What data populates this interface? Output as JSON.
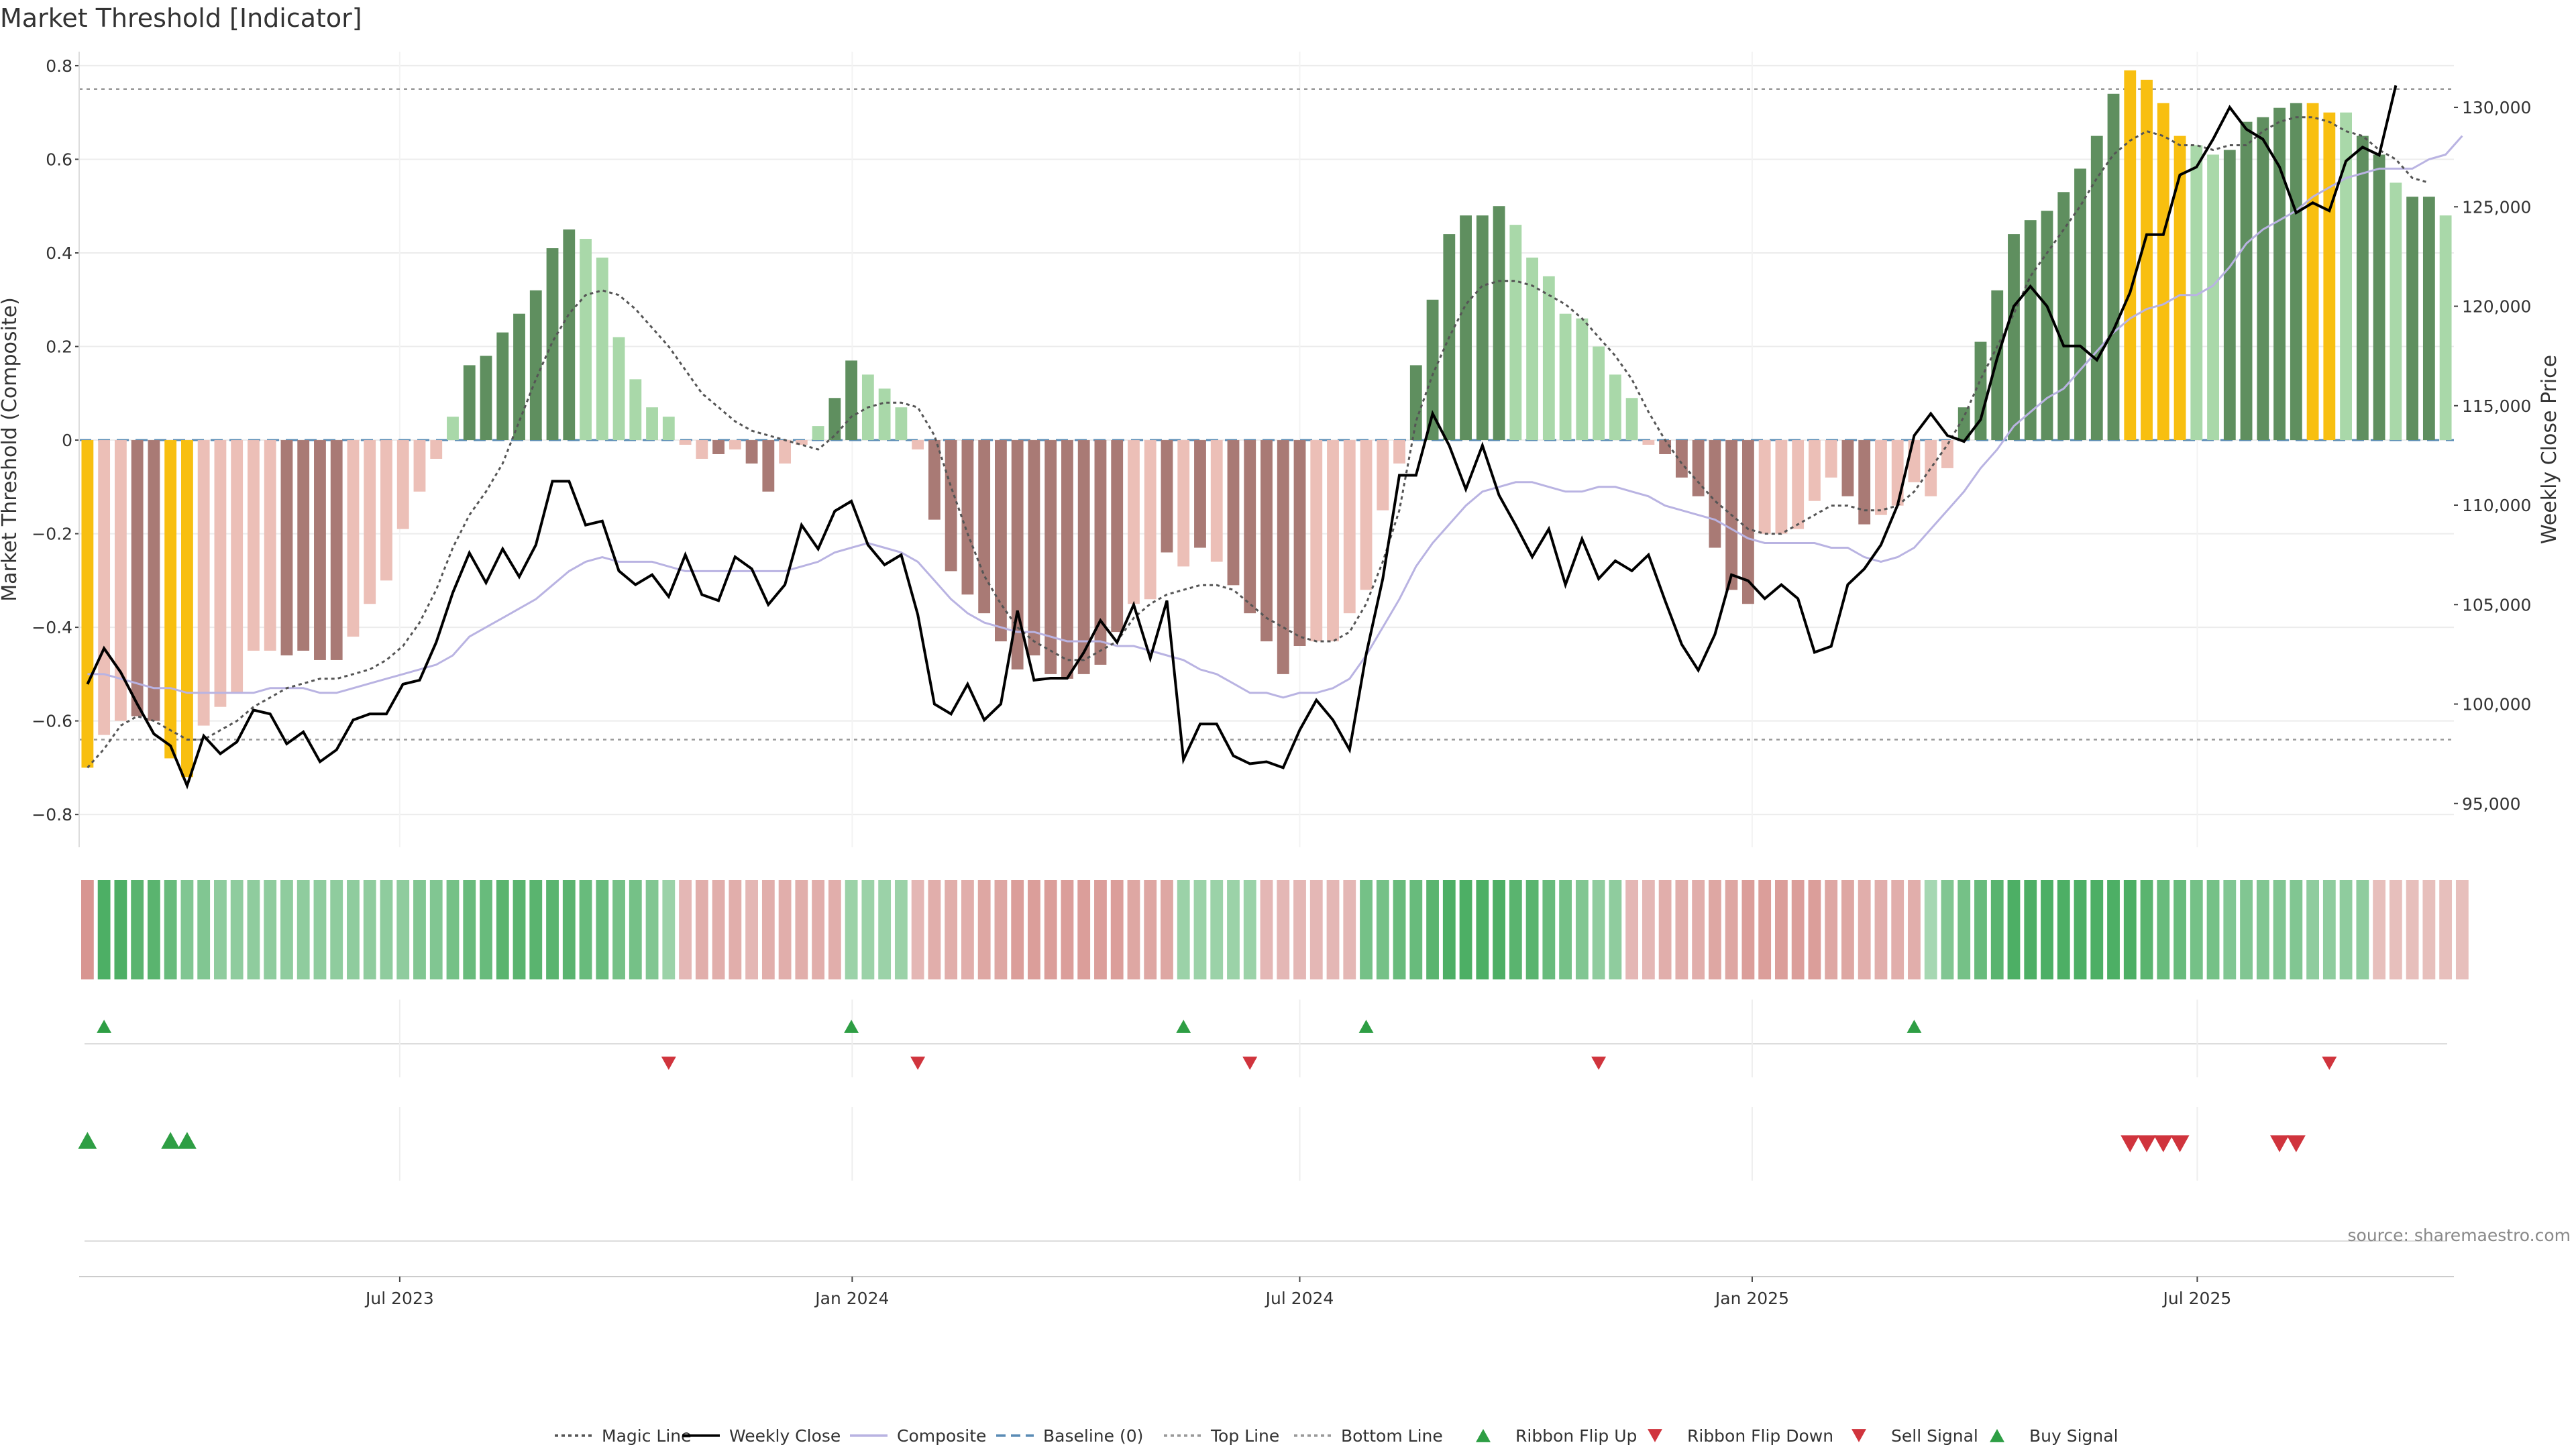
{
  "title": "Market Threshold [Indicator]",
  "source": "source: sharemaestro.com",
  "colors": {
    "magic": "#555555",
    "close": "#000000",
    "composite": "#b9b3e2",
    "baseline": "#5a8cb5",
    "ref": "#999999",
    "pos_dark": "#5f8f5f",
    "pos_light": "#a9d8a9",
    "neg_dark": "#a97a75",
    "neg_light": "#ecbfb7",
    "extreme": "#f8bf10",
    "buy": "#2e9e44",
    "sell": "#d0343d"
  },
  "legend": [
    {
      "label": "Magic Line",
      "icon": "dotted-line"
    },
    {
      "label": "Weekly Close",
      "icon": "solid-line"
    },
    {
      "label": "Composite",
      "icon": "solid-line"
    },
    {
      "label": "Baseline (0)",
      "icon": "dashed-line"
    },
    {
      "label": "Top Line",
      "icon": "dotted-line"
    },
    {
      "label": "Bottom Line",
      "icon": "dotted-line"
    },
    {
      "label": "Ribbon Flip Up",
      "icon": "triangle-up-icon"
    },
    {
      "label": "Ribbon Flip Down",
      "icon": "triangle-down-icon"
    },
    {
      "label": "Sell Signal",
      "icon": "triangle-down-icon"
    },
    {
      "label": "Buy Signal",
      "icon": "triangle-up-icon"
    }
  ],
  "chart_data": {
    "type": "bar",
    "ylabel": "Market Threshold (Composite)",
    "y2label": "Weekly Close Price",
    "ylim": [
      -0.87,
      0.83
    ],
    "y2lim": [
      92800,
      132800
    ],
    "yticks": [
      -0.8,
      -0.6,
      -0.4,
      -0.2,
      0,
      0.2,
      0.4,
      0.6,
      0.8
    ],
    "y2ticks": [
      95000,
      100000,
      105000,
      110000,
      115000,
      120000,
      125000,
      130000
    ],
    "y2ticks_labels": [
      "95,000",
      "100,000",
      "105,000",
      "110,000",
      "115,000",
      "120,000",
      "125,000",
      "130,000"
    ],
    "x_start": "2023-02-24",
    "x_end": "2025-10-10",
    "xticks": [
      {
        "date": "2023-07-01",
        "label": "Jul 2023"
      },
      {
        "date": "2024-01-01",
        "label": "Jan 2024"
      },
      {
        "date": "2024-07-01",
        "label": "Jul 2024"
      },
      {
        "date": "2025-01-01",
        "label": "Jan 2025"
      },
      {
        "date": "2025-07-01",
        "label": "Jul 2025"
      }
    ],
    "top_line": 0.75,
    "bottom_line": -0.64,
    "bars": [
      -0.7,
      -0.63,
      -0.6,
      -0.59,
      -0.6,
      -0.68,
      -0.72,
      -0.61,
      -0.57,
      -0.54,
      -0.45,
      -0.45,
      -0.46,
      -0.45,
      -0.47,
      -0.47,
      -0.42,
      -0.35,
      -0.3,
      -0.19,
      -0.11,
      -0.04,
      0.05,
      0.16,
      0.18,
      0.23,
      0.27,
      0.32,
      0.41,
      0.45,
      0.43,
      0.39,
      0.22,
      0.13,
      0.07,
      0.05,
      -0.01,
      -0.04,
      -0.03,
      -0.02,
      -0.05,
      -0.11,
      -0.05,
      -0.01,
      0.03,
      0.09,
      0.17,
      0.14,
      0.11,
      0.07,
      -0.02,
      -0.17,
      -0.28,
      -0.33,
      -0.37,
      -0.43,
      -0.49,
      -0.46,
      -0.5,
      -0.51,
      -0.5,
      -0.48,
      -0.41,
      -0.35,
      -0.34,
      -0.24,
      -0.27,
      -0.23,
      -0.26,
      -0.31,
      -0.37,
      -0.43,
      -0.5,
      -0.44,
      -0.43,
      -0.43,
      -0.37,
      -0.32,
      -0.15,
      -0.05,
      0.16,
      0.3,
      0.44,
      0.48,
      0.48,
      0.5,
      0.46,
      0.39,
      0.35,
      0.27,
      0.26,
      0.2,
      0.14,
      0.09,
      -0.01,
      -0.03,
      -0.08,
      -0.12,
      -0.23,
      -0.32,
      -0.35,
      -0.2,
      -0.2,
      -0.19,
      -0.13,
      -0.08,
      -0.12,
      -0.18,
      -0.16,
      -0.14,
      -0.09,
      -0.12,
      -0.06,
      0.07,
      0.21,
      0.32,
      0.44,
      0.47,
      0.49,
      0.53,
      0.58,
      0.65,
      0.74,
      0.79,
      0.77,
      0.72,
      0.65,
      0.63,
      0.61,
      0.62,
      0.68,
      0.69,
      0.71,
      0.72,
      0.72,
      0.7,
      0.7,
      0.65,
      0.61,
      0.55,
      0.52,
      0.52,
      0.48
    ],
    "extreme_bars": [
      0,
      5,
      6,
      123,
      124,
      125,
      126,
      134,
      135
    ],
    "dark_bars": [
      3,
      4,
      5,
      12,
      13,
      14,
      15,
      23,
      24,
      25,
      26,
      27,
      28,
      29,
      38,
      40,
      41,
      45,
      46,
      51,
      52,
      53,
      54,
      55,
      56,
      57,
      58,
      59,
      60,
      61,
      62,
      65,
      67,
      69,
      70,
      71,
      72,
      73,
      80,
      81,
      82,
      83,
      84,
      85,
      95,
      96,
      97,
      98,
      99,
      100,
      106,
      107,
      113,
      114,
      115,
      116,
      117,
      118,
      119,
      120,
      121,
      122,
      129,
      130,
      131,
      132,
      133,
      137,
      138,
      140,
      141
    ],
    "close": [
      101000,
      102800,
      101600,
      100000,
      98500,
      97900,
      95900,
      98400,
      97500,
      98100,
      99700,
      99500,
      98000,
      98600,
      97100,
      97700,
      99200,
      99500,
      99500,
      101000,
      101200,
      103100,
      105600,
      107600,
      106100,
      107800,
      106400,
      108000,
      111200,
      111200,
      109000,
      109200,
      106700,
      106000,
      106500,
      105400,
      107500,
      105500,
      105200,
      107400,
      106800,
      105000,
      106000,
      109000,
      107800,
      109700,
      110200,
      108000,
      107000,
      107500,
      104500,
      100000,
      99500,
      101000,
      99200,
      100000,
      104700,
      101200,
      101300,
      101300,
      102600,
      104200,
      103100,
      105000,
      102300,
      105200,
      97200,
      99000,
      99000,
      97400,
      97000,
      97100,
      96800,
      98700,
      100200,
      99200,
      97700,
      102500,
      106300,
      111500,
      111500,
      114600,
      113000,
      110800,
      113000,
      110500,
      109000,
      107400,
      108800,
      106000,
      108300,
      106300,
      107200,
      106700,
      107500,
      105200,
      103000,
      101700,
      103500,
      106500,
      106200,
      105300,
      106000,
      105300,
      102600,
      102900,
      106000,
      106800,
      108000,
      110000,
      113500,
      114600,
      113500,
      113200,
      114300,
      117400,
      120000,
      121000,
      120000,
      118000,
      118000,
      117300,
      118800,
      120700,
      123600,
      123600,
      126600,
      127000,
      128400,
      130000,
      128900,
      128400,
      127000,
      124700,
      125200,
      124800,
      127300,
      128000,
      127600,
      131100
    ],
    "magic": [
      -0.7,
      -0.66,
      -0.61,
      -0.59,
      -0.6,
      -0.62,
      -0.64,
      -0.64,
      -0.62,
      -0.6,
      -0.57,
      -0.55,
      -0.53,
      -0.52,
      -0.51,
      -0.51,
      -0.5,
      -0.49,
      -0.47,
      -0.44,
      -0.39,
      -0.32,
      -0.23,
      -0.16,
      -0.11,
      -0.05,
      0.04,
      0.13,
      0.21,
      0.27,
      0.31,
      0.32,
      0.31,
      0.28,
      0.24,
      0.2,
      0.15,
      0.1,
      0.07,
      0.04,
      0.02,
      0.01,
      0.0,
      -0.01,
      -0.02,
      0.01,
      0.05,
      0.07,
      0.08,
      0.08,
      0.07,
      0.01,
      -0.1,
      -0.2,
      -0.29,
      -0.35,
      -0.4,
      -0.43,
      -0.45,
      -0.47,
      -0.47,
      -0.45,
      -0.43,
      -0.38,
      -0.35,
      -0.33,
      -0.32,
      -0.31,
      -0.31,
      -0.32,
      -0.35,
      -0.38,
      -0.4,
      -0.42,
      -0.43,
      -0.43,
      -0.41,
      -0.35,
      -0.26,
      -0.15,
      0.04,
      0.14,
      0.22,
      0.29,
      0.33,
      0.34,
      0.34,
      0.33,
      0.31,
      0.29,
      0.26,
      0.22,
      0.18,
      0.13,
      0.06,
      0.0,
      -0.05,
      -0.09,
      -0.13,
      -0.16,
      -0.19,
      -0.2,
      -0.2,
      -0.18,
      -0.16,
      -0.14,
      -0.14,
      -0.15,
      -0.15,
      -0.14,
      -0.11,
      -0.06,
      -0.01,
      0.05,
      0.13,
      0.2,
      0.27,
      0.35,
      0.4,
      0.45,
      0.5,
      0.56,
      0.61,
      0.64,
      0.66,
      0.65,
      0.63,
      0.63,
      0.62,
      0.63,
      0.63,
      0.66,
      0.68,
      0.69,
      0.69,
      0.68,
      0.66,
      0.65,
      0.62,
      0.6,
      0.56,
      0.55
    ],
    "composite": [
      -0.5,
      -0.5,
      -0.51,
      -0.52,
      -0.53,
      -0.53,
      -0.54,
      -0.54,
      -0.54,
      -0.54,
      -0.54,
      -0.53,
      -0.53,
      -0.53,
      -0.54,
      -0.54,
      -0.53,
      -0.52,
      -0.51,
      -0.5,
      -0.49,
      -0.48,
      -0.46,
      -0.42,
      -0.4,
      -0.38,
      -0.36,
      -0.34,
      -0.31,
      -0.28,
      -0.26,
      -0.25,
      -0.26,
      -0.26,
      -0.26,
      -0.27,
      -0.28,
      -0.28,
      -0.28,
      -0.28,
      -0.28,
      -0.28,
      -0.28,
      -0.27,
      -0.26,
      -0.24,
      -0.23,
      -0.22,
      -0.23,
      -0.24,
      -0.26,
      -0.3,
      -0.34,
      -0.37,
      -0.39,
      -0.4,
      -0.41,
      -0.41,
      -0.42,
      -0.43,
      -0.43,
      -0.43,
      -0.44,
      -0.44,
      -0.45,
      -0.46,
      -0.47,
      -0.49,
      -0.5,
      -0.52,
      -0.54,
      -0.54,
      -0.55,
      -0.54,
      -0.54,
      -0.53,
      -0.51,
      -0.46,
      -0.4,
      -0.34,
      -0.27,
      -0.22,
      -0.18,
      -0.14,
      -0.11,
      -0.1,
      -0.09,
      -0.09,
      -0.1,
      -0.11,
      -0.11,
      -0.1,
      -0.1,
      -0.11,
      -0.12,
      -0.14,
      -0.15,
      -0.16,
      -0.17,
      -0.19,
      -0.21,
      -0.22,
      -0.22,
      -0.22,
      -0.22,
      -0.23,
      -0.23,
      -0.25,
      -0.26,
      -0.25,
      -0.23,
      -0.19,
      -0.15,
      -0.11,
      -0.06,
      -0.02,
      0.03,
      0.06,
      0.09,
      0.11,
      0.15,
      0.19,
      0.23,
      0.26,
      0.28,
      0.29,
      0.31,
      0.31,
      0.33,
      0.37,
      0.42,
      0.45,
      0.47,
      0.49,
      0.52,
      0.54,
      0.56,
      0.57,
      0.58,
      0.58,
      0.58,
      0.6,
      0.61,
      0.65
    ],
    "ribbon": [
      -0.9,
      1.0,
      1.0,
      0.9,
      0.9,
      0.8,
      0.6,
      0.6,
      0.5,
      0.5,
      0.5,
      0.5,
      0.5,
      0.5,
      0.5,
      0.5,
      0.5,
      0.5,
      0.5,
      0.5,
      0.6,
      0.6,
      0.7,
      0.8,
      0.8,
      0.9,
      0.9,
      0.9,
      0.9,
      0.9,
      0.8,
      0.8,
      0.7,
      0.7,
      0.6,
      0.4,
      -0.5,
      -0.6,
      -0.6,
      -0.6,
      -0.5,
      -0.6,
      -0.6,
      -0.6,
      -0.6,
      -0.6,
      0.4,
      0.4,
      0.4,
      0.4,
      -0.5,
      -0.6,
      -0.6,
      -0.6,
      -0.7,
      -0.7,
      -0.8,
      -0.8,
      -0.8,
      -0.8,
      -0.8,
      -0.8,
      -0.8,
      -0.7,
      -0.7,
      -0.7,
      0.4,
      0.4,
      0.4,
      0.4,
      0.4,
      -0.5,
      -0.5,
      -0.5,
      -0.5,
      -0.5,
      -0.5,
      0.7,
      0.7,
      0.8,
      0.8,
      0.9,
      1.0,
      1.0,
      1.0,
      1.0,
      0.9,
      0.9,
      0.8,
      0.7,
      0.6,
      0.5,
      0.5,
      -0.5,
      -0.5,
      -0.6,
      -0.6,
      -0.6,
      -0.7,
      -0.7,
      -0.8,
      -0.8,
      -0.8,
      -0.8,
      -0.8,
      -0.7,
      -0.7,
      -0.6,
      -0.6,
      -0.6,
      -0.6,
      0.3,
      0.6,
      0.7,
      0.8,
      0.9,
      1.0,
      1.0,
      1.0,
      1.0,
      1.0,
      1.0,
      1.0,
      1.0,
      0.9,
      0.8,
      0.8,
      0.7,
      0.7,
      0.6,
      0.6,
      0.6,
      0.6,
      0.6,
      0.5,
      0.5,
      0.5,
      0.5,
      -0.4,
      -0.4,
      -0.4,
      -0.4,
      -0.4,
      -0.4
    ],
    "ribbon_flip_up": [
      1,
      46,
      66,
      77,
      110
    ],
    "ribbon_flip_down": [
      35,
      50,
      70,
      91,
      135
    ],
    "buy_signals": [
      0,
      5,
      6
    ],
    "sell_signals": [
      123,
      124,
      125,
      126,
      132,
      133
    ]
  }
}
